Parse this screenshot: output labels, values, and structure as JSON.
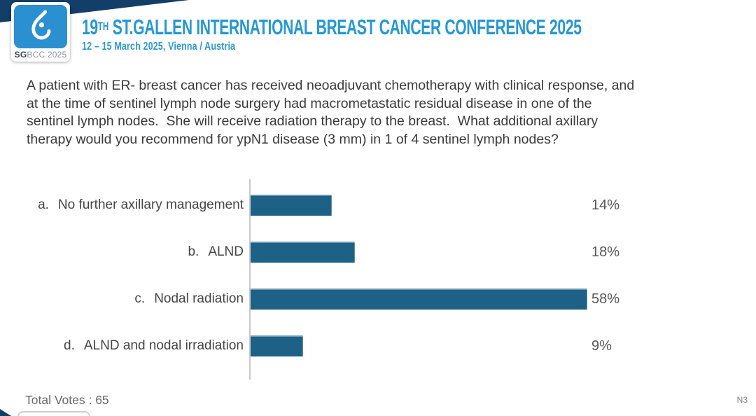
{
  "header": {
    "logo": {
      "icon": "sgbcc-breast-logo-icon",
      "caption_bold": "SG",
      "caption_rest": "BCC 2025"
    },
    "title_number": "19",
    "title_sup": "TH",
    "title_rest": " ST.GALLEN INTERNATIONAL BREAST CANCER CONFERENCE 2025",
    "subtitle": "12 – 15 March 2025, Vienna / Austria"
  },
  "question": {
    "text": "A patient with ER- breast cancer has received neoadjuvant chemotherapy with clinical response, and\nat the time of sentinel lymph node surgery had macrometastatic residual disease in one of the\nsentinel lymph nodes.  She will receive radiation therapy to the breast.  What additional axillary\ntherapy would you recommend for ypN1 disease (3 mm) in 1 of 4 sentinel lymph nodes?"
  },
  "chart_data": {
    "type": "bar",
    "orientation": "horizontal",
    "title": "",
    "xlabel": "",
    "ylabel": "",
    "xlim": [
      0,
      65
    ],
    "grid": false,
    "legend": "none",
    "unit": "%",
    "bar_color": "#1e6187",
    "categories": [
      "a. No further axillary management",
      "b. ALND",
      "c. Nodal radiation",
      "d. ALND and nodal irradiation"
    ],
    "values": [
      14,
      18,
      58,
      9
    ],
    "rows": [
      {
        "letter": "a.",
        "label": "No further axillary management",
        "value": 14,
        "pct_label": "14%"
      },
      {
        "letter": "b.",
        "label": "ALND",
        "value": 18,
        "pct_label": "18%"
      },
      {
        "letter": "c.",
        "label": "Nodal radiation",
        "value": 58,
        "pct_label": "58%"
      },
      {
        "letter": "d.",
        "label": "ALND and nodal irradiation",
        "value": 9,
        "pct_label": "9%"
      }
    ]
  },
  "footer": {
    "total_votes": "Total Votes : 65",
    "slide_code": "N3"
  },
  "colors": {
    "accent_blue": "#2598d3",
    "logo_blue": "#2b90d0",
    "navy_wedge": "#123e68",
    "bar_teal": "#1e6187"
  }
}
